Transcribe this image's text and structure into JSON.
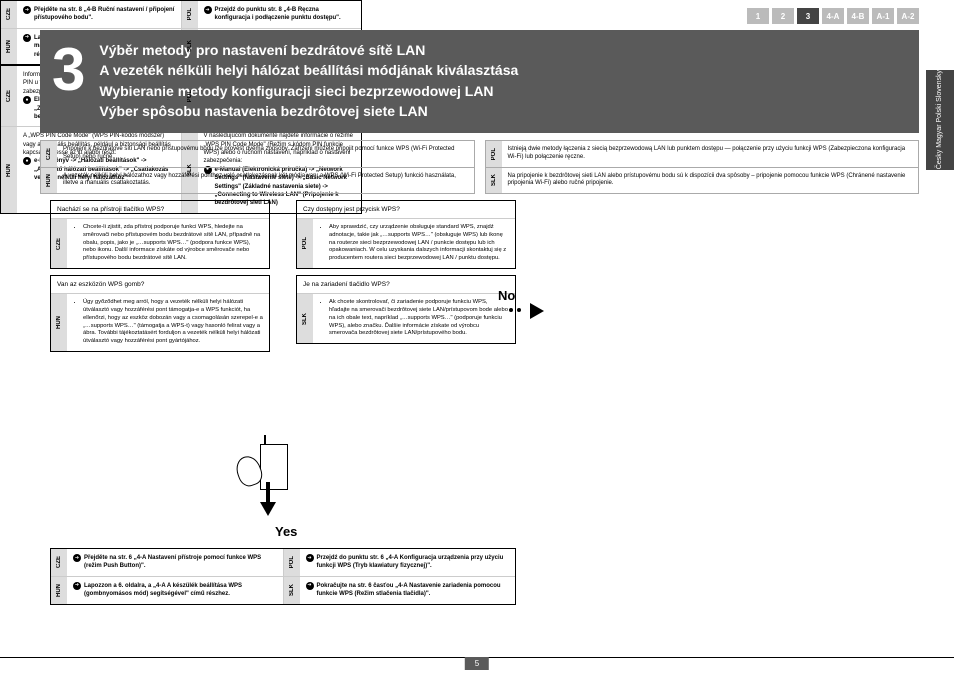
{
  "nav": [
    "1",
    "2",
    "3",
    "4-A",
    "4-B",
    "A-1",
    "A-2"
  ],
  "nav_active": 2,
  "side_langs": "Česky Magyar Polski Slovensky",
  "step_number": "3",
  "titles": [
    "Výběr metody pro nastavení bezdrátové sítě LAN",
    "A vezeték nélküli helyi hálózat beállítási módjának kiválasztása",
    "Wybieranie metody konfiguracji sieci bezprzewodowej LAN",
    "Výber spôsobu nastavenia bezdrôtovej siete LAN"
  ],
  "intro": [
    {
      "lang": "CZE",
      "txt": "Připojení k bezdrátové síti LAN nebo přístupovému bodu lze provést dvěma způsoby. Zařízení můžete připojit pomocí funkce WPS (Wi-Fi Protected Setup) nebo ručně."
    },
    {
      "lang": "HUN",
      "txt": "A vezeték nélküli helyi hálózathoz vagy hozzáférési ponthoz való csatlakozásnak két módja van: a WPS (Wi-Fi Protected Setup) funkció használata, illetve a manuális csatlakoztatás."
    },
    {
      "lang": "POL",
      "txt": "Istnieją dwie metody łączenia z siecią bezprzewodową LAN lub punktem dostępu — połączenie przy użyciu funkcji WPS (Zabezpieczona konfiguracja Wi-Fi) lub połączenie ręczne."
    },
    {
      "lang": "SLK",
      "txt": "Na pripojenie k bezdrôtovej sieti LAN alebo prístupovému bodu sú k dispozícii dva spôsoby – pripojenie pomocou funkcie WPS (Chránené nastavenie pripojenia Wi-Fi) alebo ručné pripojenie."
    }
  ],
  "q1": {
    "cze_head": "Nachází se na přístroji tlačítko WPS?",
    "cze_body": "Chcete-li zjistit, zda přístroj podporuje funkci WPS, hledejte na směrovači nebo přístupovém bodu bezdrátové sítě LAN, případně na obalu, popis, jako je „…supports WPS…\" (podpora funkce WPS), nebo ikonu. Další informace získáte od výrobce směrovače nebo přístupového bodu bezdrátové sítě LAN.",
    "hun_head": "Van az eszközön WPS gomb?",
    "hun_body": "Úgy győződhet meg arról, hogy a vezeték nélküli helyi hálózati útválasztó vagy hozzáférési pont támogatja-e a WPS funkciót, ha ellenőrzi, hogy az eszköz dobozán vagy a csomagolásán szerepel-e a „…supports WPS…\" (támogatja a WPS-t) vagy hasonló felirat vagy a ábra. További tájékoztatásért forduljon a vezeték nélküli helyi hálózati útválasztó vagy hozzáférési pont gyártójához."
  },
  "q2": {
    "pol_head": "Czy dostępny jest przycisk WPS?",
    "pol_body": "Aby sprawdzić, czy urządzenie obsługuje standard WPS, znajdź adnotacje, takie jak „…supports WPS…\" (obsługuje WPS) lub ikonę na routerze sieci bezprzewodowej LAN / punkcie dostępu lub ich opakowaniach. W celu uzyskania dalszych informacji skontaktuj się z producentem routera sieci bezprzewodowej LAN / punktu dostępu.",
    "slk_head": "Je na zariadení tlačidlo WPS?",
    "slk_body": "Ak chcete skontrolovať, či zariadenie podporuje funkciu WPS, hľadajte na smerovači bezdrôtovej siete LAN/prístupovom bode alebo na ich obale text, napríklad „…supports WPS…\" (podporuje funkciu WPS), alebo značku. Ďalšie informácie získate od výrobcu smerovača bezdrôtovej siete LAN/prístupového bodu."
  },
  "yes": "Yes",
  "no": "No",
  "yes_res": [
    {
      "lang": "CZE",
      "txt": "Přejděte na str. 6 „4-A Nastavení přístroje pomocí funkce WPS (režim Push Button)\"."
    },
    {
      "lang": "HUN",
      "txt": "Lapozzon a 6. oldalra, a „4-A A készülék beállítása WPS (gombnyomásos mód) segítségével\" című részhez."
    },
    {
      "lang": "POL",
      "txt": "Przejdź do punktu str. 6 „4-A Konfiguracja urządzenia przy użyciu funkcji WPS (Tryb klawiatury fizycznej)\"."
    },
    {
      "lang": "SLK",
      "txt": "Pokračujte na str. 6 časťou „4-A Nastavenie zariadenia pomocou funkcie WPS (Režim stlačenia tlačidla)\"."
    }
  ],
  "no_res": [
    {
      "lang": "CZE",
      "txt": "Přejděte na str. 8 „4-B Ruční nastavení / připojení přístupového bodu\"."
    },
    {
      "lang": "HUN",
      "txt": "Lapozzon a 8. oldalra, a „4-B A hozzáférési pont manuális beállítása és csatlakoztatása\" című részhez."
    },
    {
      "lang": "POL",
      "txt": "Przejdź do punktu str. 8 „4-B Ręczna konfiguracja i podłączenie punktu dostępu\"."
    },
    {
      "lang": "SLK",
      "txt": "Pokračujte na str. 8 časťou „4-B Ručné nastavenie prístupového bodu a pripojenie\"."
    }
  ],
  "info": [
    {
      "lang": "CZE",
      "pre": "Informace o režimu „WPS PIN Code Mode\" (Režim kódu PIN u funkce WPS) nebo ručním nastavení, například zabezpečení, naleznete v tématu:",
      "b": "Elektronická příručka -> „Nastavení sítě\" -> „Základní nastavení sítě\" -> „Připojení k bezdrátové síti LAN\""
    },
    {
      "lang": "HUN",
      "pre": "A „WPS PIN Code Mode\" (WPS PIN-kódos módszer) vagy a manuális beállítás, például a biztonsági beállítás kapcsán keresse az itt alábbi részt:",
      "b": "e-Kézikönyv -> „Hálózati beállítások\" -> „Alapvető hálózati beállítások\" -> „Csatlakozás vezeték nélküli helyi hálózathoz\""
    },
    {
      "lang": "POL",
      "pre": "Więcej informacji na temat „WPS PIN Code Mode\" (Trybu PIN WPS) lub konfiguracji ręcznej ustawień sieci bezpieczeństwa lub innych znajduje w:",
      "b": "e-Podręcznik -> „Ustawienia sieciowe\" -> „Podstawowe ustawienia sieciowe\" -> „Podłączanie do sieci bezprzewodowej LAN\""
    },
    {
      "lang": "SLK",
      "pre": "V nasledujúcom dokumente nájdete informácie o režime „WPS PIN Code Mode\" (Režim s kódom PIN funkcie WPS) alebo o ručnom nastavení, napríklad o nastavení zabezpečenia:",
      "b": "e-Manual (Elektronická príručka) -> „Network Settings\" (Nastavenie siete) -> „Basic Network Settings\" (Základné nastavenia siete) -> „Connecting to Wireless LAN\" (Pripojenie k bezdrôtovej sieti LAN)"
    }
  ],
  "page": "5"
}
